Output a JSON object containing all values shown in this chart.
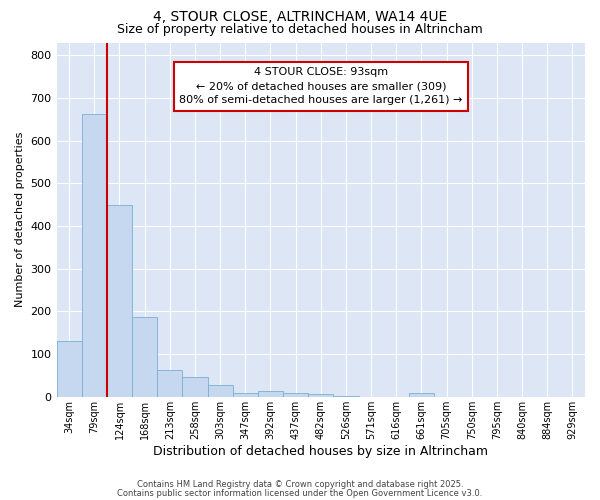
{
  "title1": "4, STOUR CLOSE, ALTRINCHAM, WA14 4UE",
  "title2": "Size of property relative to detached houses in Altrincham",
  "xlabel": "Distribution of detached houses by size in Altrincham",
  "ylabel": "Number of detached properties",
  "bin_labels": [
    "34sqm",
    "79sqm",
    "124sqm",
    "168sqm",
    "213sqm",
    "258sqm",
    "303sqm",
    "347sqm",
    "392sqm",
    "437sqm",
    "482sqm",
    "526sqm",
    "571sqm",
    "616sqm",
    "661sqm",
    "705sqm",
    "750sqm",
    "795sqm",
    "840sqm",
    "884sqm",
    "929sqm"
  ],
  "bar_heights": [
    130,
    662,
    450,
    188,
    62,
    47,
    27,
    10,
    13,
    10,
    7,
    3,
    0,
    0,
    8,
    0,
    0,
    0,
    0,
    0,
    0
  ],
  "bar_color": "#c5d8f0",
  "bar_edge_color": "#7aafd4",
  "annotation_text": "4 STOUR CLOSE: 93sqm\n← 20% of detached houses are smaller (309)\n80% of semi-detached houses are larger (1,261) →",
  "annotation_box_color": "#ffffff",
  "annotation_box_edge": "#cc0000",
  "ylim": [
    0,
    830
  ],
  "yticks": [
    0,
    100,
    200,
    300,
    400,
    500,
    600,
    700,
    800
  ],
  "footnote1": "Contains HM Land Registry data © Crown copyright and database right 2025.",
  "footnote2": "Contains public sector information licensed under the Open Government Licence v3.0.",
  "fig_bg_color": "#ffffff",
  "plot_bg_color": "#dce6f5"
}
